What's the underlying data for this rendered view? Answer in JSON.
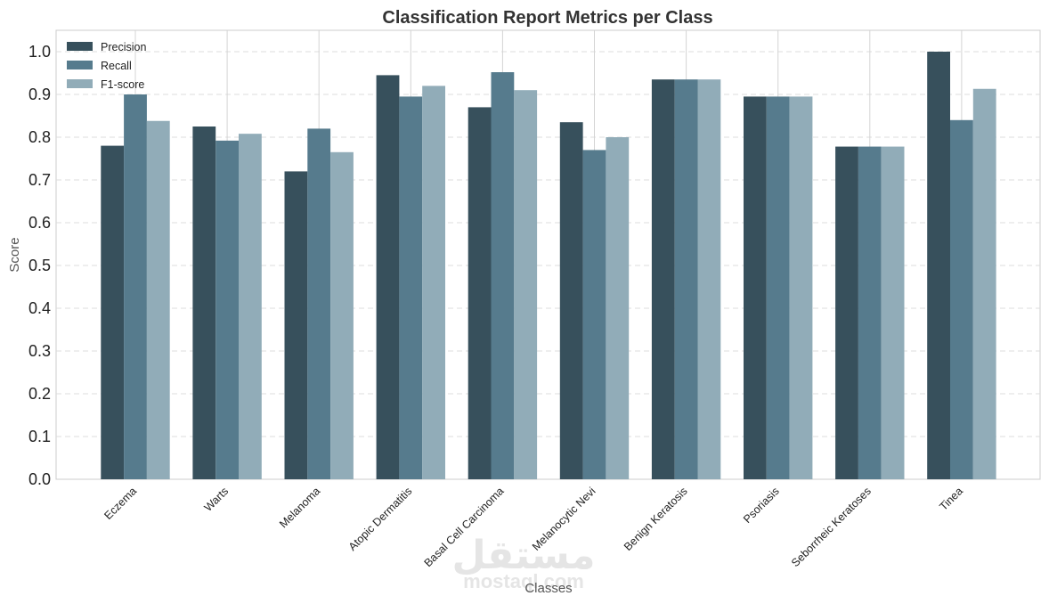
{
  "chart_data": {
    "type": "bar",
    "title": "Classification Report Metrics per Class",
    "xlabel": "Classes",
    "ylabel": "Score",
    "ylim": [
      0,
      1.05
    ],
    "yticks": [
      "0.0",
      "0.1",
      "0.2",
      "0.3",
      "0.4",
      "0.5",
      "0.6",
      "0.7",
      "0.8",
      "0.9",
      "1.0"
    ],
    "ytick_values": [
      0.0,
      0.1,
      0.2,
      0.3,
      0.4,
      0.5,
      0.6,
      0.7,
      0.8,
      0.9,
      1.0
    ],
    "grid": true,
    "legend_position": "top-left",
    "categories": [
      "Eczema",
      "Warts",
      "Melanoma",
      "Atopic Dermatitis",
      "Basal Cell Carcinoma",
      "Melanocytic Nevi",
      "Benign Keratosis",
      "Psoriasis",
      "Seborrheic Keratoses",
      "Tinea"
    ],
    "series": [
      {
        "name": "Precision",
        "color": "#37505c",
        "values": [
          0.78,
          0.825,
          0.72,
          0.945,
          0.87,
          0.835,
          0.935,
          0.895,
          0.778,
          1.0
        ]
      },
      {
        "name": "Recall",
        "color": "#567b8d",
        "values": [
          0.9,
          0.792,
          0.82,
          0.895,
          0.952,
          0.77,
          0.935,
          0.895,
          0.778,
          0.84
        ]
      },
      {
        "name": "F1-score",
        "color": "#91acb8",
        "values": [
          0.838,
          0.808,
          0.765,
          0.92,
          0.91,
          0.8,
          0.935,
          0.895,
          0.778,
          0.913
        ]
      }
    ]
  },
  "watermark": {
    "arabic": "مستقل",
    "latin": "mostaql.com"
  }
}
